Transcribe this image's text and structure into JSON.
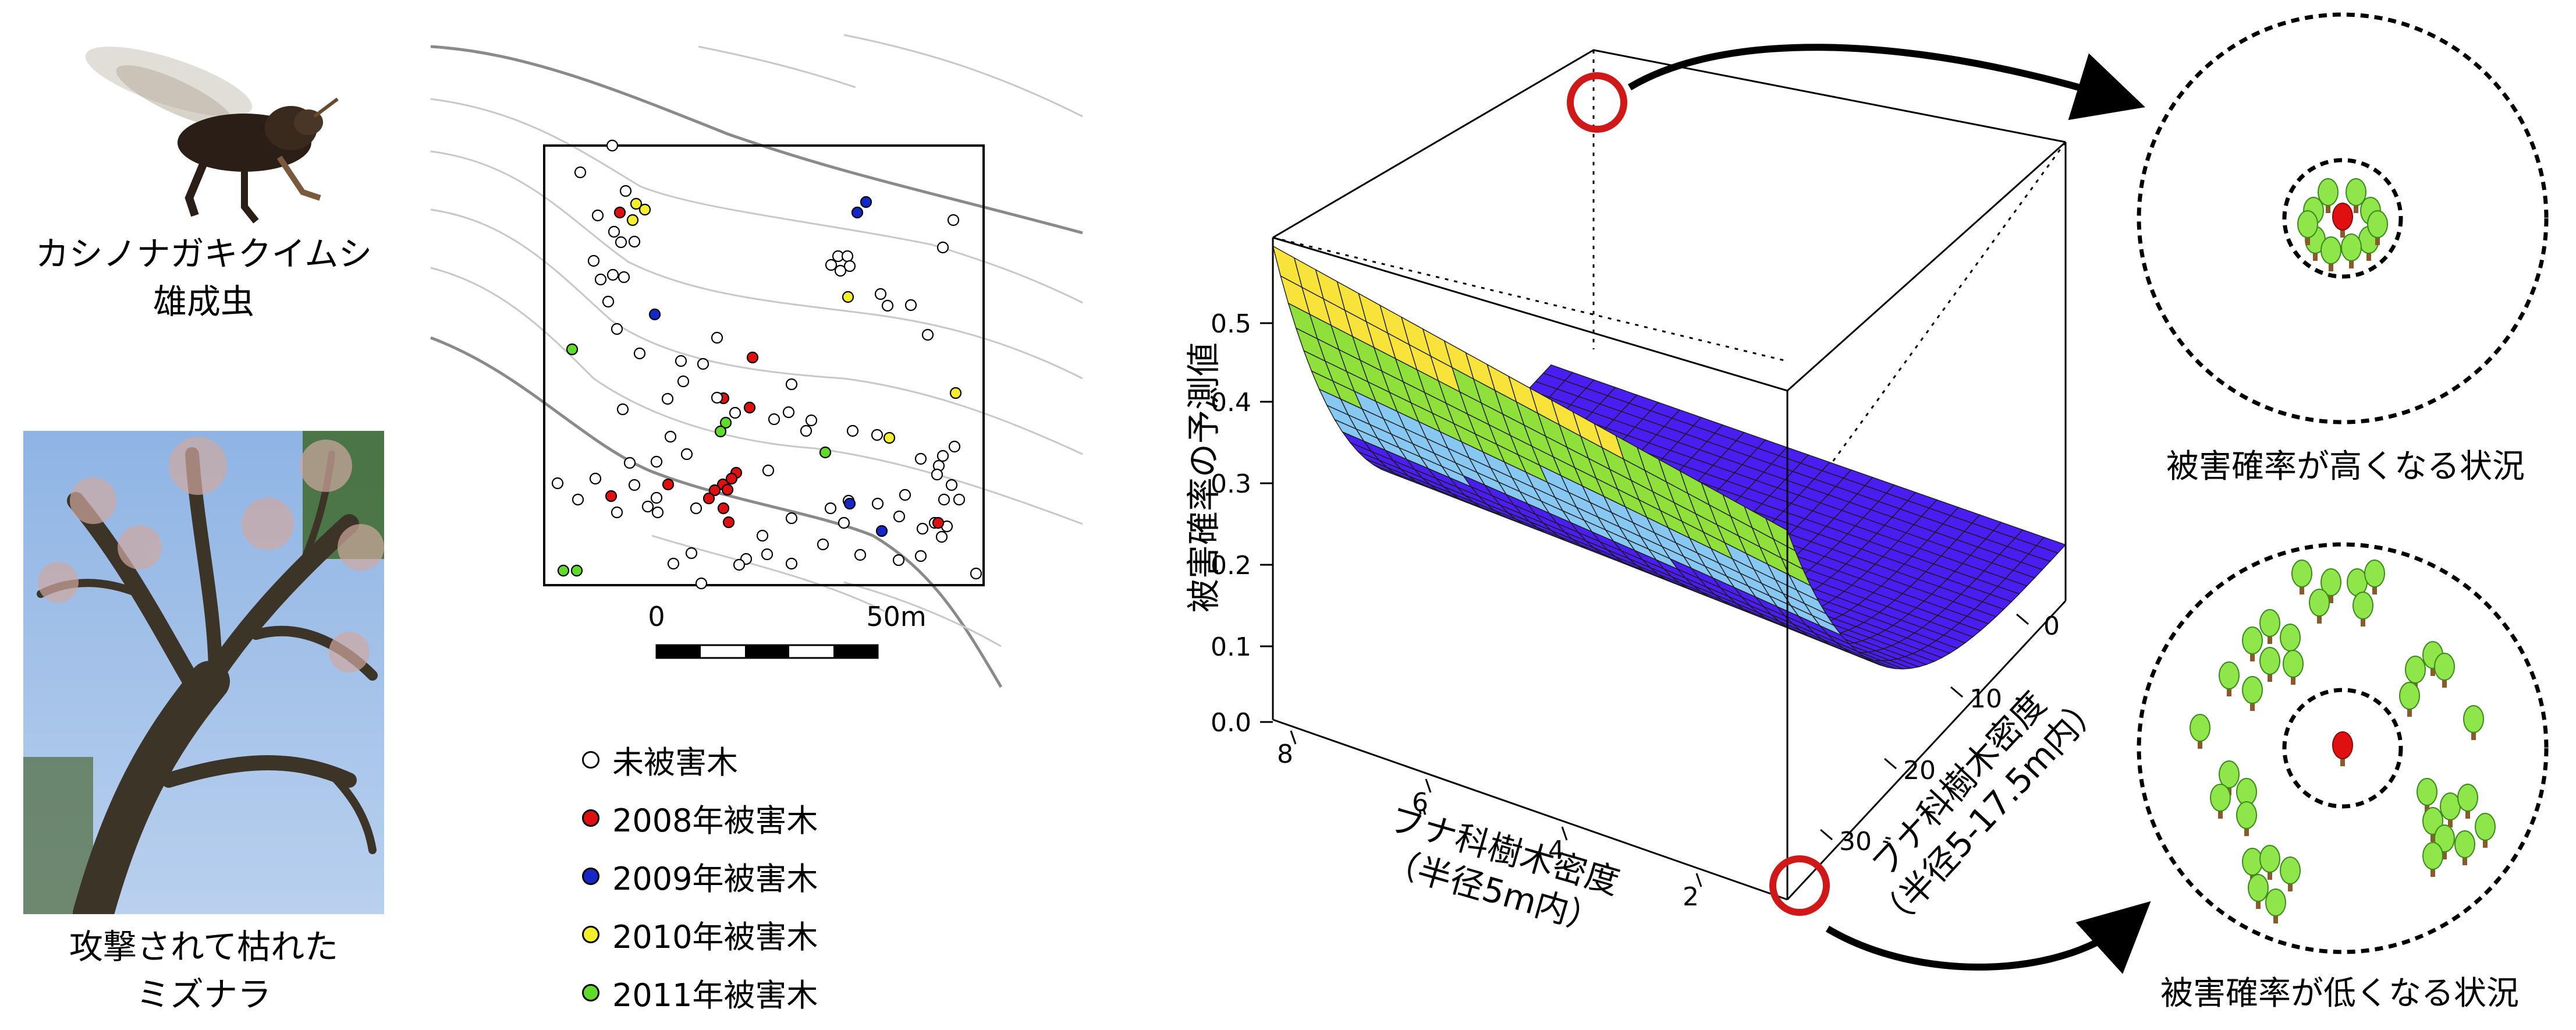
{
  "photos": {
    "beetle_caption": [
      "カシノナガキクイムシ",
      "雄成虫"
    ],
    "tree_caption": [
      "攻撃されて枯れた",
      "ミズナラ"
    ]
  },
  "map": {
    "scale_zero": "0",
    "scale_end": "50m"
  },
  "legend": [
    {
      "label": "未被害木",
      "color": "#ffffff"
    },
    {
      "label": "2008年被害木",
      "color": "#e01010"
    },
    {
      "label": "2009年被害木",
      "color": "#1428c8"
    },
    {
      "label": "2010年被害木",
      "color": "#f5ee2a"
    },
    {
      "label": "2011年被害木",
      "color": "#5fdc2a"
    }
  ],
  "surface": {
    "zlabel": "被害確率の予測値",
    "z_ticks": [
      "0.0",
      "0.1",
      "0.2",
      "0.3",
      "0.4",
      "0.5"
    ],
    "xlabel_line1": "ブナ科樹木密度",
    "xlabel_line2": "（半径5m内）",
    "x_ticks": [
      "8",
      "6",
      "4",
      "2"
    ],
    "ylabel_line1": "ブナ科樹木密度",
    "ylabel_line2": "（半径5-17.5m内）",
    "y_ticks": [
      "0",
      "10",
      "20",
      "30"
    ]
  },
  "scenarios": {
    "high": "被害確率が高くなる状況",
    "low": "被害確率が低くなる状況"
  },
  "colors": {
    "surface_top": "#f7e33a",
    "surface_mid": "#8fe03a",
    "surface_cyan": "#86c8f2",
    "surface_bottom": "#4a1ef0",
    "tree_green": "#8ee64a",
    "tree_red": "#e01010",
    "highlight_ring": "#d01818"
  }
}
